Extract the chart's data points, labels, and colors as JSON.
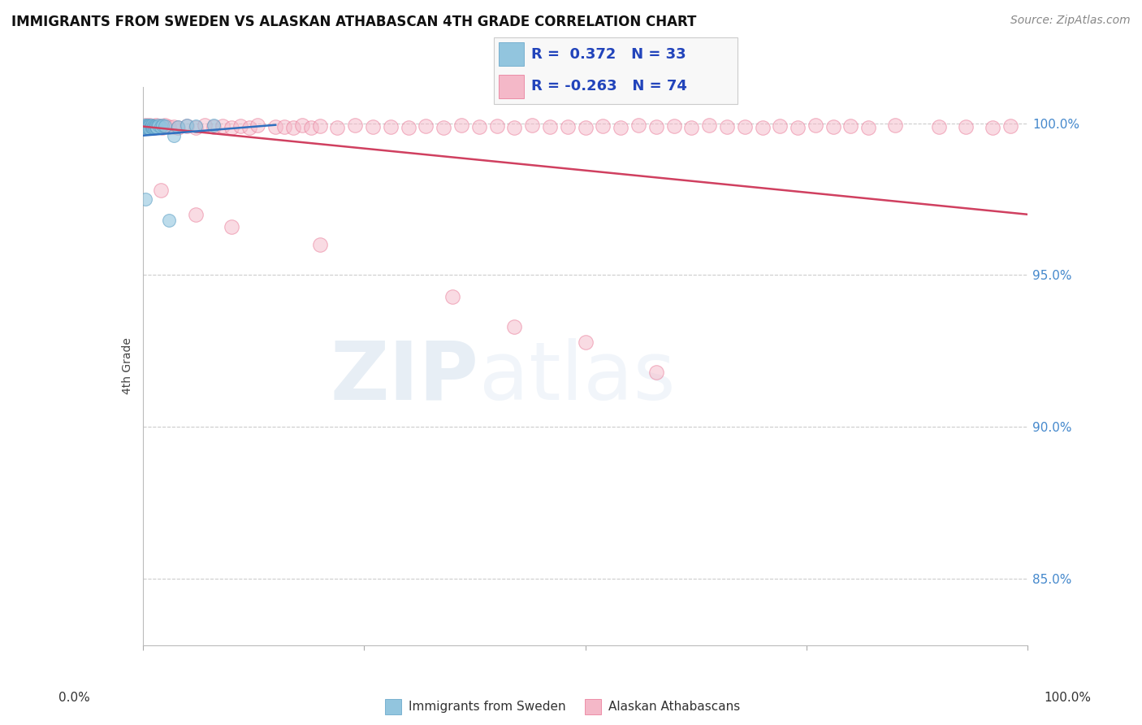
{
  "title": "IMMIGRANTS FROM SWEDEN VS ALASKAN ATHABASCAN 4TH GRADE CORRELATION CHART",
  "source": "Source: ZipAtlas.com",
  "ylabel": "4th Grade",
  "yticks": [
    0.85,
    0.9,
    0.95,
    1.0
  ],
  "ytick_labels": [
    "85.0%",
    "90.0%",
    "95.0%",
    "100.0%"
  ],
  "xlim": [
    0.0,
    1.0
  ],
  "ylim": [
    0.828,
    1.012
  ],
  "legend_r_blue": "0.372",
  "legend_n_blue": "33",
  "legend_r_pink": "-0.263",
  "legend_n_pink": "74",
  "blue_color": "#92c5de",
  "blue_edge_color": "#5b9fc5",
  "pink_color": "#f4b8c8",
  "pink_edge_color": "#e87090",
  "blue_line_color": "#3070c0",
  "pink_line_color": "#d04060",
  "watermark_zip": "ZIP",
  "watermark_atlas": "atlas",
  "blue_x": [
    0.002,
    0.003,
    0.003,
    0.004,
    0.004,
    0.005,
    0.005,
    0.006,
    0.006,
    0.007,
    0.007,
    0.008,
    0.008,
    0.009,
    0.01,
    0.01,
    0.011,
    0.012,
    0.013,
    0.014,
    0.015,
    0.016,
    0.018,
    0.02,
    0.022,
    0.025,
    0.03,
    0.035,
    0.04,
    0.05,
    0.003,
    0.06,
    0.08
  ],
  "blue_y": [
    0.9995,
    0.999,
    0.9985,
    0.9992,
    0.9988,
    0.9993,
    0.9987,
    0.9991,
    0.9986,
    0.9994,
    0.9989,
    0.9992,
    0.9983,
    0.999,
    0.9988,
    0.9993,
    0.9987,
    0.9991,
    0.9985,
    0.9992,
    0.9989,
    0.9986,
    0.9994,
    0.9988,
    0.9993,
    0.9991,
    0.968,
    0.996,
    0.999,
    0.9995,
    0.975,
    0.9992,
    0.9994
  ],
  "pink_x_top": [
    0.003,
    0.005,
    0.007,
    0.008,
    0.01,
    0.012,
    0.013,
    0.015,
    0.017,
    0.02,
    0.022,
    0.025,
    0.03,
    0.035,
    0.04,
    0.05,
    0.06,
    0.07,
    0.08,
    0.09,
    0.1,
    0.11,
    0.12,
    0.13,
    0.15,
    0.16,
    0.17,
    0.18,
    0.19,
    0.2,
    0.22,
    0.24,
    0.26,
    0.28,
    0.3,
    0.32,
    0.34,
    0.36,
    0.38,
    0.4,
    0.42,
    0.44,
    0.46,
    0.48,
    0.5,
    0.52,
    0.54,
    0.56,
    0.58,
    0.6,
    0.62,
    0.64,
    0.66,
    0.68,
    0.7,
    0.72,
    0.74,
    0.76,
    0.78,
    0.8,
    0.82,
    0.85,
    0.9,
    0.93,
    0.96,
    0.98
  ],
  "pink_y_top": [
    0.9995,
    0.999,
    0.9988,
    0.9993,
    0.9985,
    0.9992,
    0.9987,
    0.9994,
    0.9989,
    0.9991,
    0.9986,
    0.9993,
    0.9988,
    0.999,
    0.9985,
    0.9992,
    0.9987,
    0.9994,
    0.9989,
    0.9991,
    0.9985,
    0.9992,
    0.9987,
    0.9994,
    0.9989,
    0.999,
    0.9985,
    0.9993,
    0.9987,
    0.9991,
    0.9986,
    0.9993,
    0.9988,
    0.999,
    0.9985,
    0.9992,
    0.9987,
    0.9994,
    0.9989,
    0.9991,
    0.9986,
    0.9993,
    0.9988,
    0.999,
    0.9985,
    0.9992,
    0.9987,
    0.9994,
    0.9989,
    0.9991,
    0.9986,
    0.9993,
    0.9988,
    0.999,
    0.9985,
    0.9992,
    0.9987,
    0.9994,
    0.9989,
    0.9991,
    0.9986,
    0.9993,
    0.9988,
    0.999,
    0.9985,
    0.9992
  ],
  "pink_x_scatter": [
    0.02,
    0.06,
    0.1,
    0.2,
    0.35,
    0.42,
    0.5,
    0.58
  ],
  "pink_y_scatter": [
    0.978,
    0.97,
    0.966,
    0.96,
    0.943,
    0.933,
    0.928,
    0.918
  ],
  "pink_line_x0": 0.0,
  "pink_line_x1": 1.0,
  "pink_line_y0": 0.999,
  "pink_line_y1": 0.97,
  "blue_line_x0": 0.0,
  "blue_line_x1": 0.15,
  "blue_line_y0": 0.996,
  "blue_line_y1": 0.9995
}
